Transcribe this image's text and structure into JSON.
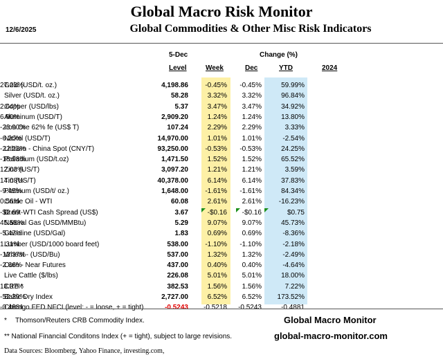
{
  "header": {
    "title": "Global Macro Risk Monitor",
    "date": "12/6/2025",
    "subtitle": "Global Commodities & Other Misc Risk Indicators"
  },
  "columns": {
    "level_date": "5-Dec",
    "level": "Level",
    "change_group": "Change (%)",
    "week": "Week",
    "dec": "Dec",
    "ytd": "YTD",
    "y2024": "2024"
  },
  "colors": {
    "week_highlight": "#fdf0a6",
    "ytd_highlight": "#cfe9f7",
    "negative_level": "#e00000",
    "comment_marker": "#1a8f1a"
  },
  "rows": [
    {
      "name": "Gold (USD/t. oz.)",
      "level": "4,198.86",
      "week": "-0.45%",
      "dec": "-0.45%",
      "ytd": "59.99%",
      "y2024": "27.23%"
    },
    {
      "name": "Silver (USD/t. oz.)",
      "level": "58.28",
      "week": "3.32%",
      "dec": "3.32%",
      "ytd": "96.84%",
      "y2024": ""
    },
    {
      "name": "Copper (USD/lbs)",
      "level": "5.37",
      "week": "3.47%",
      "dec": "3.47%",
      "ytd": "34.92%",
      "y2024": "2.64%"
    },
    {
      "name": "Aluminum (USD/T)",
      "level": "2,909.20",
      "week": "1.24%",
      "dec": "1.24%",
      "ytd": "13.80%",
      "y2024": "6.90%"
    },
    {
      "name": "Iron Ore 62% fe (US$ T)",
      "level": "107.24",
      "week": "2.29%",
      "dec": "2.29%",
      "ytd": "3.33%",
      "y2024": "-23.90%"
    },
    {
      "name": "Nickel (USD/T)",
      "level": "14,970.00",
      "week": "1.01%",
      "dec": "1.01%",
      "ytd": "-2.54%",
      "y2024": "-6.20%"
    },
    {
      "name": "Lithium - China Spot (CNY/T)",
      "level": "93,250.00",
      "week": "-0.53%",
      "dec": "-0.53%",
      "ytd": "24.25%",
      "y2024": "-22.23%"
    },
    {
      "name": "Palladium (USD/t.oz)",
      "level": "1,471.50",
      "week": "1.52%",
      "dec": "1.52%",
      "ytd": "65.52%",
      "y2024": "-18.98%"
    },
    {
      "name": "Zinc (US/T)",
      "level": "3,097.20",
      "week": "1.21%",
      "dec": "1.21%",
      "ytd": "3.59%",
      "y2024": "12.03%"
    },
    {
      "name": "Tin (US/T)",
      "level": "40,378.00",
      "week": "6.14%",
      "dec": "6.14%",
      "ytd": "37.83%",
      "y2024": "14.08%"
    },
    {
      "name": "Platinum (USD/t/ oz.)",
      "level": "1,648.00",
      "week": "-1.61%",
      "dec": "-1.61%",
      "ytd": "84.34%",
      "y2024": "-9.45%"
    },
    {
      "name": "Crude Oil - WTI",
      "level": "60.08",
      "week": "2.61%",
      "dec": "2.61%",
      "ytd": "-16.23%",
      "y2024": "0.56%"
    },
    {
      "name": "Brent-WTI Cash Spread (US$)",
      "level": "3.67",
      "week": "-$0.16",
      "dec": "-$0.16",
      "ytd": "$0.75",
      "y2024": "-$2.69",
      "marker": true
    },
    {
      "name": "Natural Gas  (USD/MMBtu)",
      "level": "5.29",
      "week": "9.07%",
      "dec": "9.07%",
      "ytd": "45.73%",
      "y2024": "45.58%"
    },
    {
      "name": "Gasoline (USD/Gal)",
      "level": "1.83",
      "week": "0.69%",
      "dec": "0.69%",
      "ytd": "-8.36%",
      "y2024": "-5.47%"
    },
    {
      "name": "Lumber  (USD/1000 board feet)",
      "level": "538.00",
      "week": "-1.10%",
      "dec": "-1.10%",
      "ytd": "-2.18%",
      "y2024": "1.31%"
    },
    {
      "name": "Wheat - (USD/Bu)",
      "level": "537.00",
      "week": "1.32%",
      "dec": "1.32%",
      "ytd": "-2.49%",
      "y2024": "-12.37%"
    },
    {
      "name": "Corn - Near Futures",
      "level": "437.00",
      "week": "0.40%",
      "dec": "0.40%",
      "ytd": "-4.64%",
      "y2024": "-2.66%"
    },
    {
      "name": "Live Cattle ($/lbs)",
      "level": "226.08",
      "week": "5.01%",
      "dec": "5.01%",
      "ytd": "18.00%",
      "y2024": ""
    },
    {
      "name": "CRB *",
      "level": "382.53",
      "week": "1.56%",
      "dec": "1.56%",
      "ytd": "7.22%",
      "y2024": "18.37%"
    },
    {
      "name": "Baltic Dry Index",
      "level": "2,727.00",
      "week": "6.52%",
      "dec": "6.52%",
      "ytd": "173.52%",
      "y2024": "-52.39%"
    },
    {
      "name": "Chicago FED NFCI (level:  - = loose,  + = tight)",
      "level": "-0.5243",
      "week": "-0.5218",
      "dec": "-0.5243",
      "ytd": "-0.4881",
      "y2024": "-0.4881",
      "negative": true
    }
  ],
  "footer": {
    "note1_mark": "*",
    "note1": "Thomson/Reuters CRB Commodity Index.",
    "note2": "** National Financial Conditons Index (+ = tight), subject to large revisions.",
    "sources": "Data Sources:  Bloomberg,  Yahoo Finance, investing.com,",
    "brand_name": "Global Macro Monitor",
    "brand_site": "global-macro-monitor.com"
  }
}
